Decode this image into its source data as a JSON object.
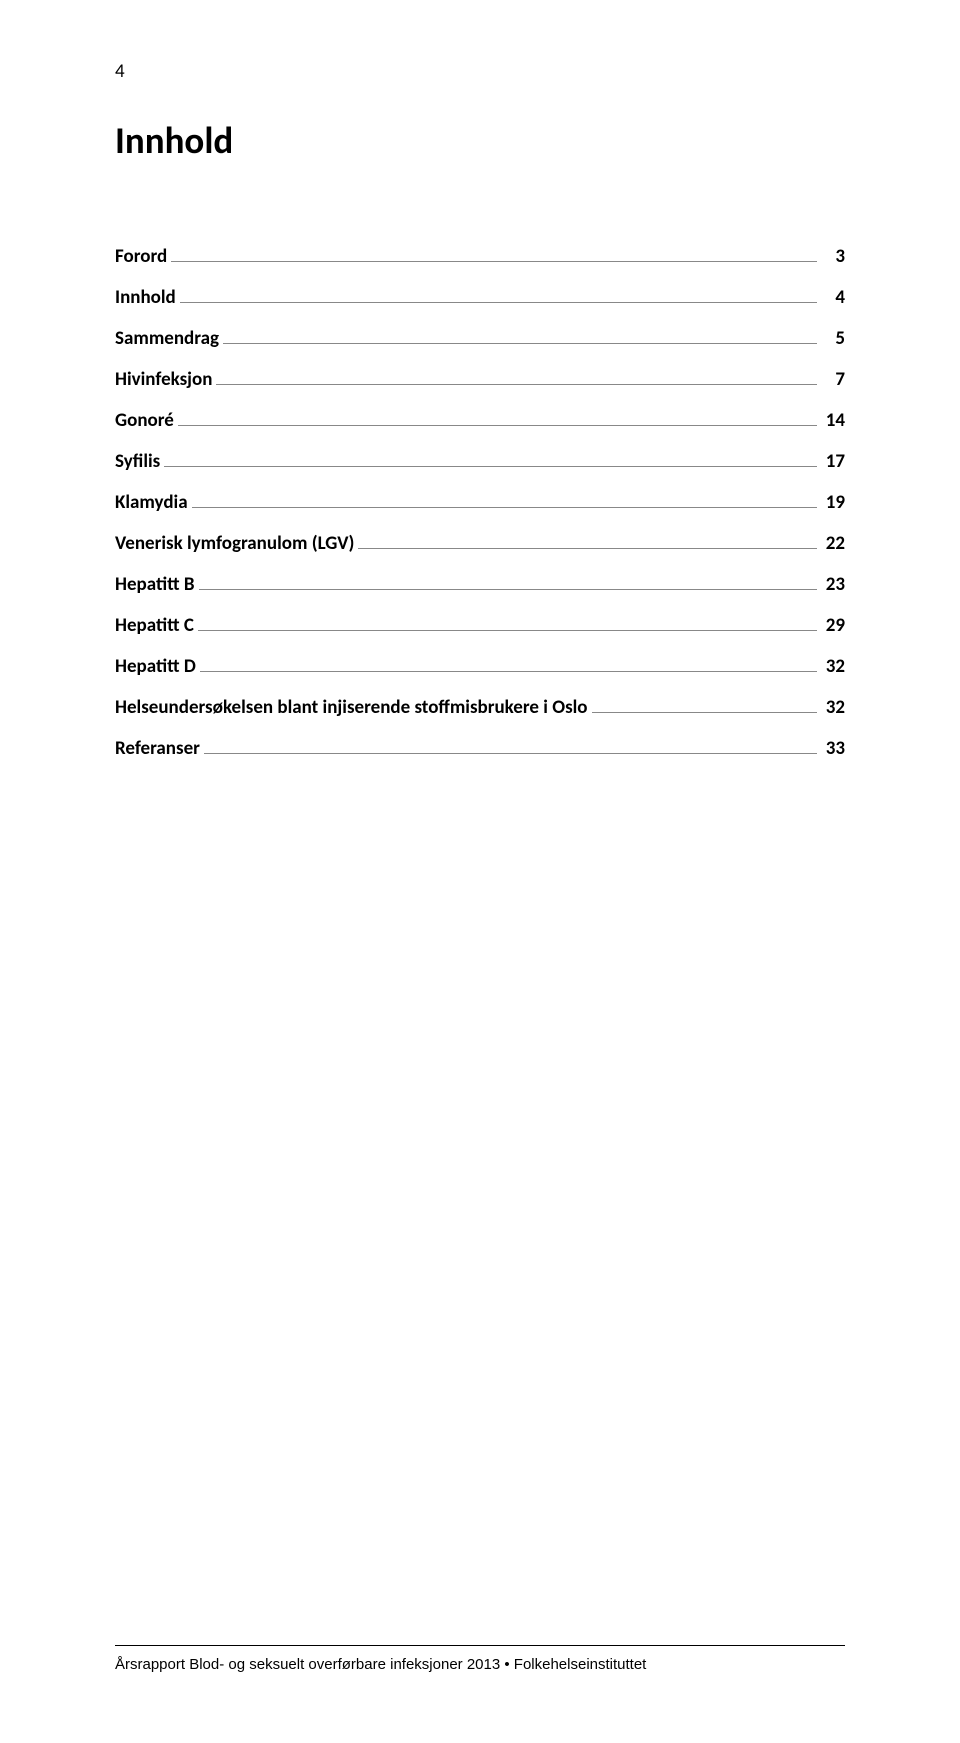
{
  "page_number_top": "4",
  "title": "Innhold",
  "toc": [
    {
      "label": "Forord",
      "page": "3"
    },
    {
      "label": "Innhold",
      "page": "4"
    },
    {
      "label": "Sammendrag",
      "page": "5"
    },
    {
      "label": "Hivinfeksjon",
      "page": "7"
    },
    {
      "label": "Gonoré",
      "page": "14"
    },
    {
      "label": "Syfilis",
      "page": "17"
    },
    {
      "label": "Klamydia",
      "page": "19"
    },
    {
      "label": "Venerisk lymfogranulom (LGV)",
      "page": "22"
    },
    {
      "label": "Hepatitt B",
      "page": "23"
    },
    {
      "label": "Hepatitt C",
      "page": "29"
    },
    {
      "label": "Hepatitt D",
      "page": "32"
    },
    {
      "label": "Helseundersøkelsen blant injiserende stoffmisbrukere i Oslo",
      "page": "32"
    },
    {
      "label": "Referanser",
      "page": "33"
    }
  ],
  "footer": "Årsrapport Blod- og seksuelt overførbare infeksjoner 2013 • Folkehelseinstituttet",
  "colors": {
    "text": "#000000",
    "leader": "#888888",
    "background": "#ffffff"
  },
  "fonts": {
    "body_family": "Calibri",
    "footer_family": "Arial",
    "title_size_pt": 28,
    "row_size_pt": 14,
    "footer_size_pt": 11
  }
}
